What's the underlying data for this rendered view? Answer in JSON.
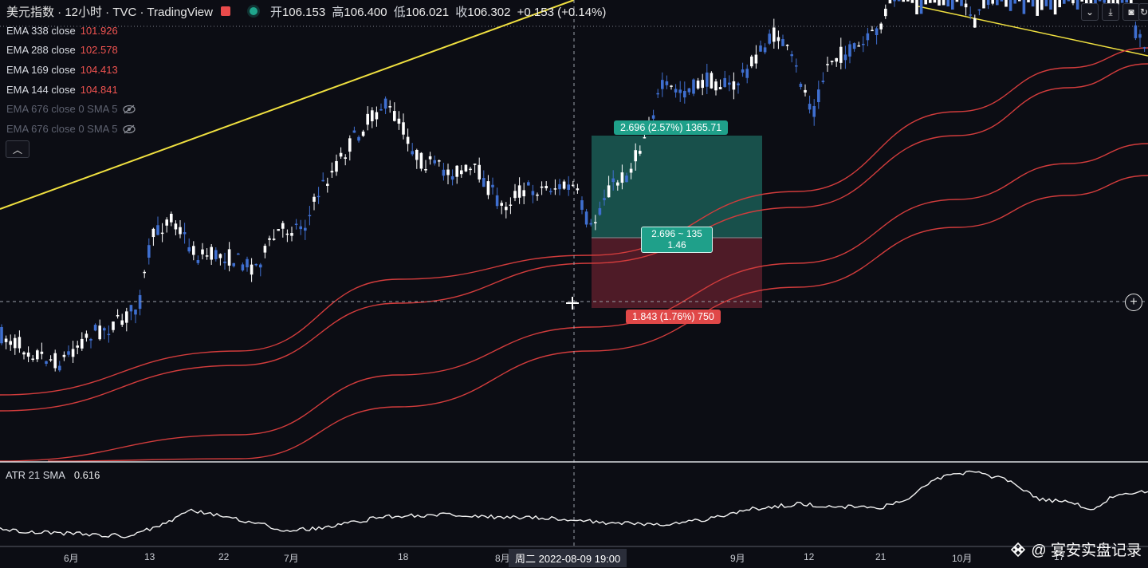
{
  "header": {
    "symbol_title": "美元指数 · 12小时 · TVC · TradingView",
    "ohlc": [
      {
        "k": "开",
        "v": "106.153"
      },
      {
        "k": "高",
        "v": "106.400"
      },
      {
        "k": "低",
        "v": "106.021"
      },
      {
        "k": "收",
        "v": "106.302"
      }
    ],
    "change": "+0.153 (+0.14%)",
    "buttons": [
      "chevron-down",
      "download",
      "camera",
      "refresh"
    ]
  },
  "legend": [
    {
      "name": "EMA 338 close",
      "value": "101.926",
      "visible": true
    },
    {
      "name": "EMA 288 close",
      "value": "102.578",
      "visible": true
    },
    {
      "name": "EMA 169 close",
      "value": "104.413",
      "visible": true
    },
    {
      "name": "EMA 144 close",
      "value": "104.841",
      "visible": true
    },
    {
      "name": "EMA 676 close 0 SMA 5",
      "value": "",
      "visible": false
    },
    {
      "name": "EMA 676 close 0 SMA 5",
      "value": "",
      "visible": false
    }
  ],
  "position_tool": {
    "target_label": "2.696 (2.57%) 1365.71",
    "ratio_line1": "2.696 ~ 135",
    "ratio_line2": "1.46",
    "stop_label": "1.843 (1.76%) 750"
  },
  "atr": {
    "name": "ATR 21 SMA",
    "value": "0.616"
  },
  "x_axis": {
    "labels": [
      {
        "t": "6月"
      },
      {
        "t": "13"
      },
      {
        "t": "22"
      },
      {
        "t": "7月"
      },
      {
        "t": "18"
      },
      {
        "t": "8月"
      },
      {
        "t": "9月"
      },
      {
        "t": "12"
      },
      {
        "t": "21"
      },
      {
        "t": "10月"
      },
      {
        "t": "17"
      }
    ],
    "crosshair_label": "周二 2022-08-09   19:00"
  },
  "watermark": {
    "text": "@ 宴安实盘记录"
  },
  "colors": {
    "up": "#ffffff",
    "down": "#3f6fd0",
    "ema": "#d23c3c",
    "trend": "#f0e040",
    "profit": "#1f6e62",
    "loss": "#6a2630"
  }
}
